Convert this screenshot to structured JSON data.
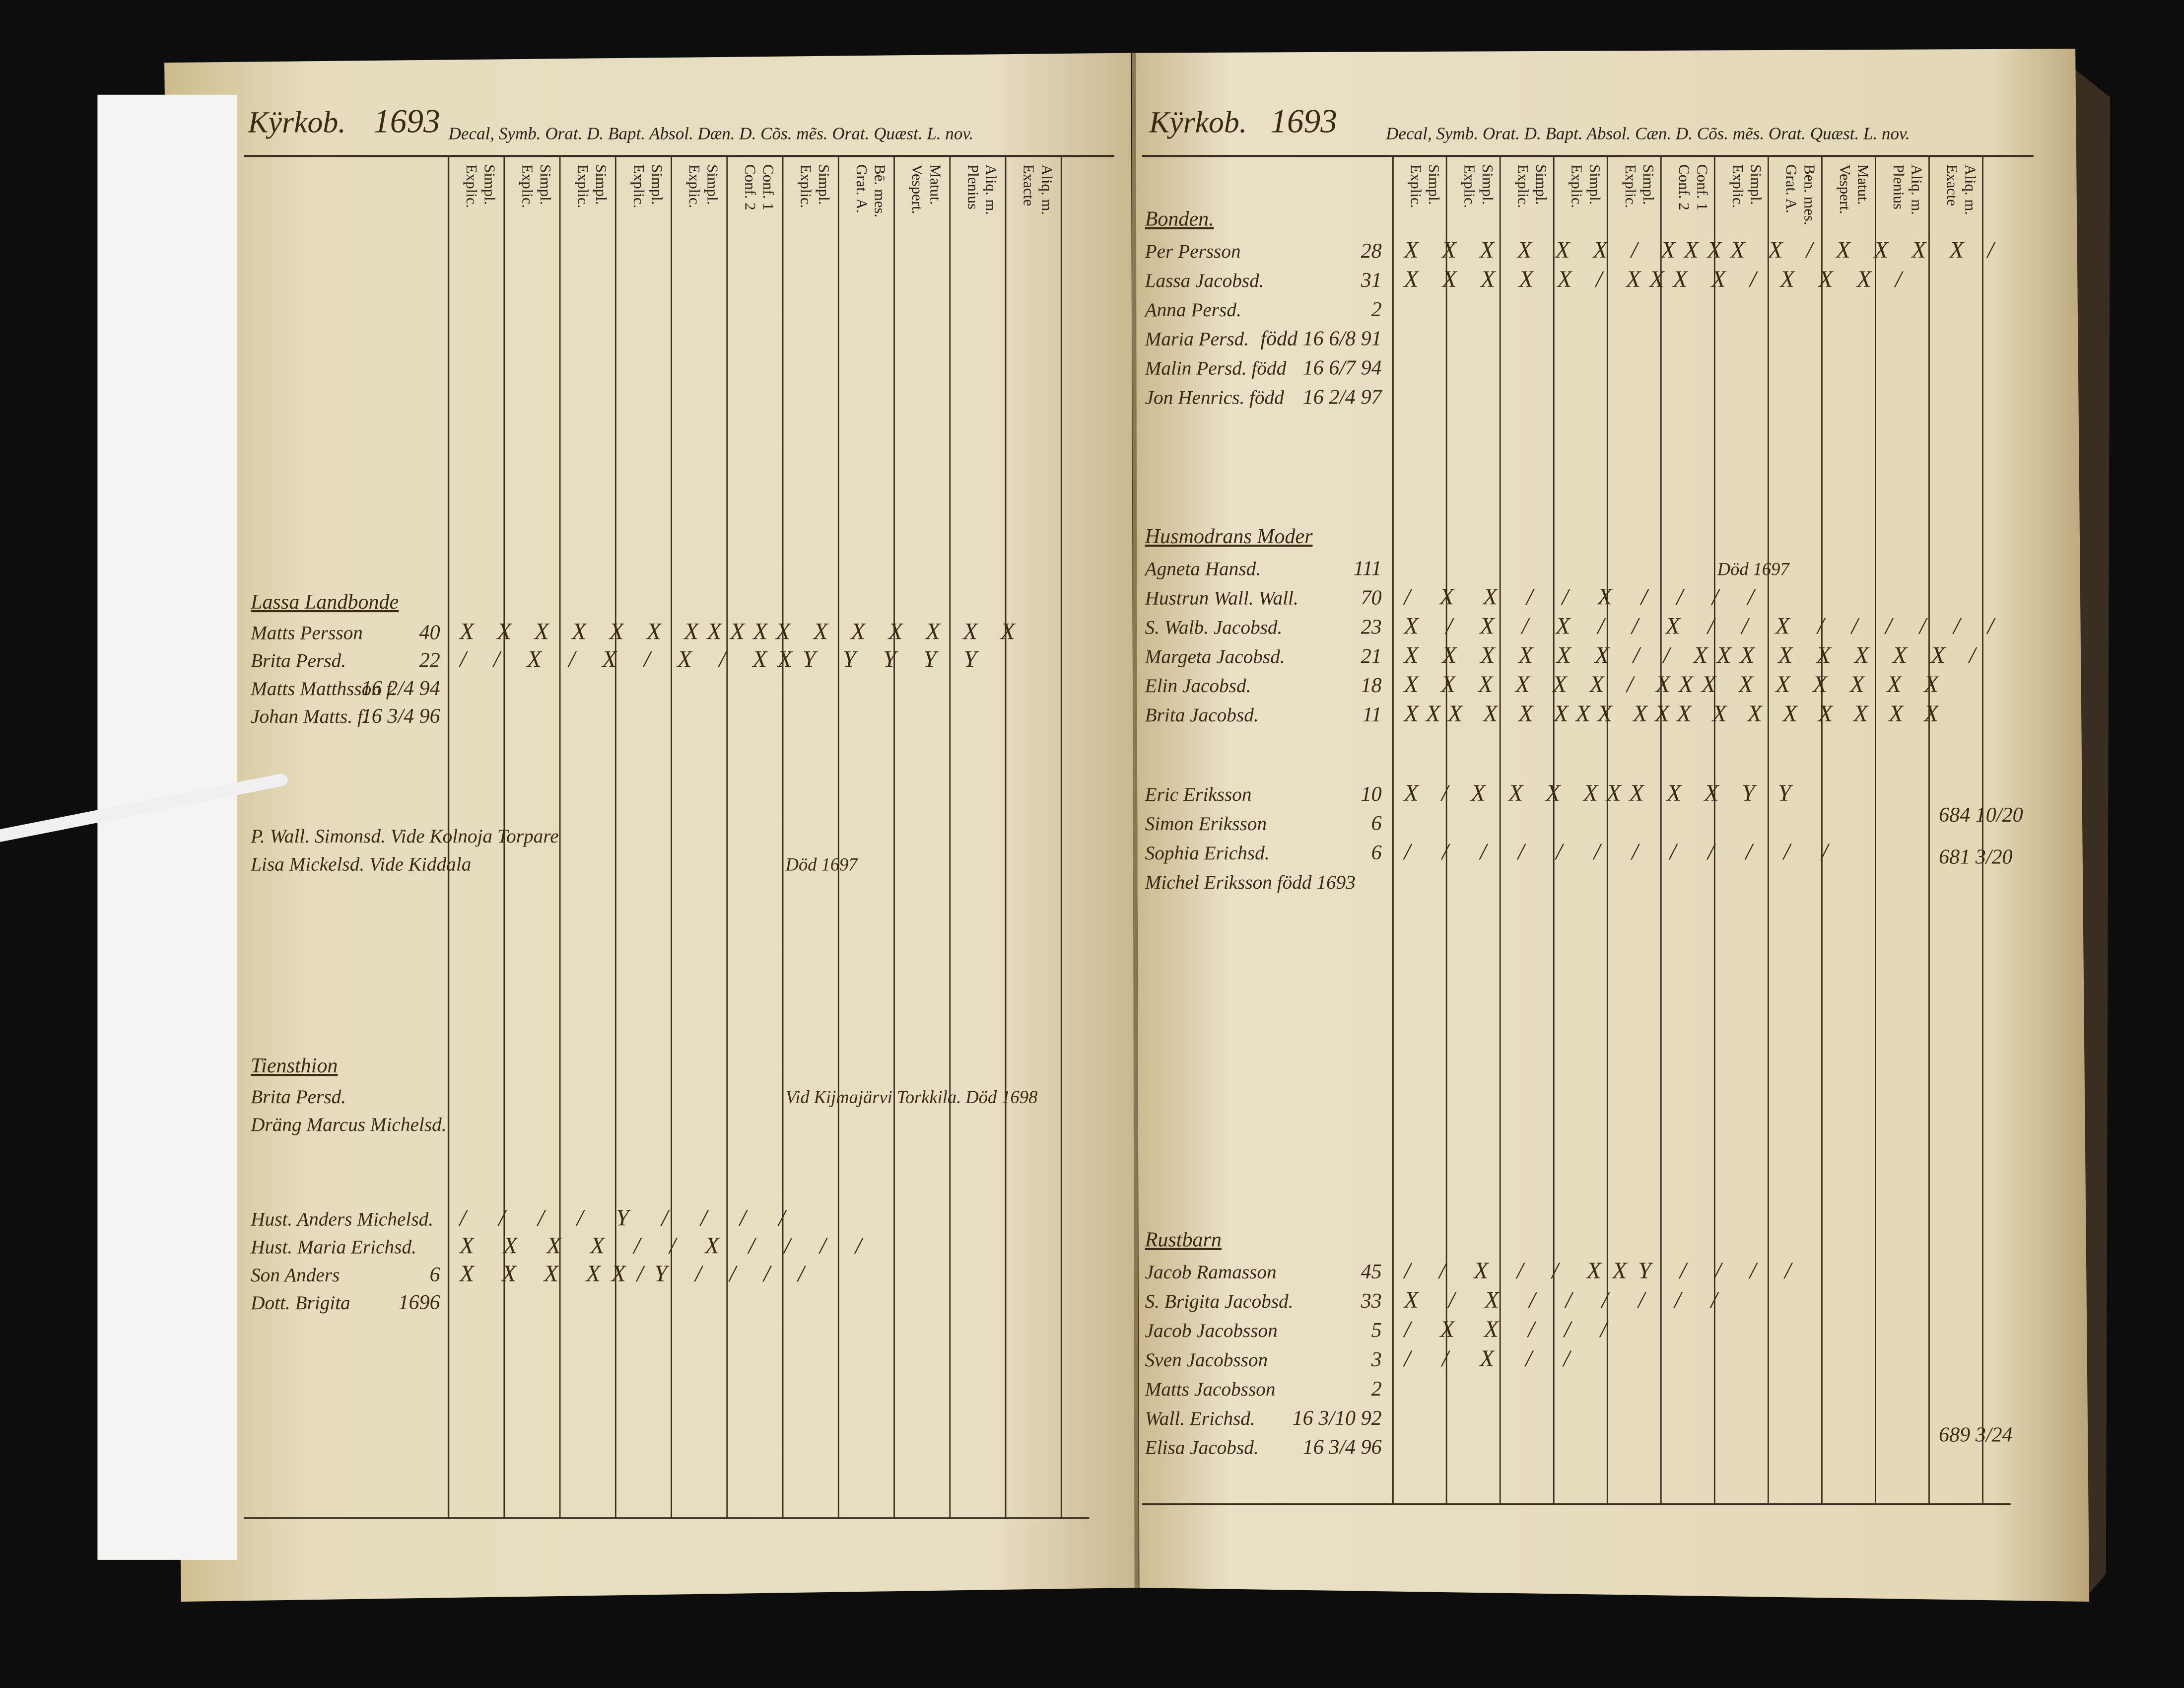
{
  "left_page": {
    "header": {
      "place": "Kÿrkob.",
      "year": "1693",
      "printed": "Decal, Symb. Orat. D. Bapt. Absol. Dæn. D. Cõs. mẽs. Orat. Quæst. L. nov."
    },
    "columns": [
      [
        "Explic.",
        "Simpl."
      ],
      [
        "Explic.",
        "Simpl."
      ],
      [
        "Explic.",
        "Simpl."
      ],
      [
        "Explic.",
        "Simpl."
      ],
      [
        "Explic.",
        "Simpl."
      ],
      [
        "Conf. 2",
        "Conf. 1"
      ],
      [
        "Explic.",
        "Simpl."
      ],
      [
        "Grat. A.",
        "Bē. mes."
      ],
      [
        "Vespert.",
        "Matut."
      ],
      [
        "Plenius",
        "Aliq. m."
      ],
      [
        "Exacte",
        "Aliq. m."
      ]
    ],
    "groups": [
      {
        "heading": "Lassa Landbonde",
        "rows": [
          {
            "name": "Matts Persson",
            "age": "40",
            "marks": "X X X X X X XXXXX X X X X X X"
          },
          {
            "name": "Brita Persd.",
            "age": "22",
            "marks": "/ / X / X / X / XXY Y Y Y Y"
          },
          {
            "name": "Matts Matthsson f.",
            "age": "16 2/4 94"
          },
          {
            "name": "Johan Matts. f.",
            "age": "16 3/4 96"
          }
        ]
      },
      {
        "rows": [
          {
            "name": "P. Wall. Simonsd. Vide Kolnoja Torpare"
          },
          {
            "name": "Lisa Mickelsd. Vide Kiddala",
            "note": "Död 1697"
          }
        ]
      },
      {
        "heading": "Tiensthion",
        "rows": [
          {
            "name": "Brita Persd.",
            "note": "Vid Kijmajärvi Torkkila. Död 1698"
          },
          {
            "name": "Dräng Marcus Michelsd."
          }
        ]
      },
      {
        "rows": [
          {
            "name": "Hust. Anders Michelsd.",
            "marks": "/ / / / Y / / / /"
          },
          {
            "name": "Hust. Maria Erichsd.",
            "marks": "X X X X / / X / / / /"
          },
          {
            "name": "Son Anders",
            "age": "6",
            "marks": "X X X XX/Y / / / /"
          },
          {
            "name": "Dott. Brigita",
            "age": "1696"
          }
        ]
      }
    ]
  },
  "right_page": {
    "header": {
      "place": "Kÿrkob.",
      "year": "1693",
      "printed": "Decal, Symb. Orat. D. Bapt. Absol. Cæn. D. Cõs. mẽs. Orat. Quæst. L. nov."
    },
    "columns": [
      [
        "Explic.",
        "Simpl."
      ],
      [
        "Explic.",
        "Simpl."
      ],
      [
        "Explic.",
        "Simpl."
      ],
      [
        "Explic.",
        "Simpl."
      ],
      [
        "Explic.",
        "Simpl."
      ],
      [
        "Conf. 2",
        "Conf. 1"
      ],
      [
        "Explic.",
        "Simpl."
      ],
      [
        "Grat. A.",
        "Ben. mes."
      ],
      [
        "Vespert.",
        "Matut."
      ],
      [
        "Plenius",
        "Aliq. m."
      ],
      [
        "Exacte",
        "Aliq. m."
      ]
    ],
    "groups": [
      {
        "heading": "Bonden.",
        "rows": [
          {
            "name": "Per Persson",
            "age": "28",
            "marks": "X X X X X X / XXXX X / X X X X /"
          },
          {
            "name": "Lassa Jacobsd.",
            "age": "31",
            "marks": "X X X X X / XXX X / X X X /"
          },
          {
            "name": "Anna Persd.",
            "age": "2"
          },
          {
            "name": "Maria Persd.",
            "age": "född 16 6/8 91"
          },
          {
            "name": "Malin Persd. född",
            "age": "16 6/7 94"
          },
          {
            "name": "Jon Henrics. född",
            "age": "16 2/4 97"
          }
        ]
      },
      {
        "heading": "Husmodrans Moder",
        "rows": [
          {
            "name": "Agneta Hansd.",
            "age": "111",
            "note": "Död 1697"
          },
          {
            "name": "Hustrun Wall. Wall.",
            "age": "70",
            "marks": "/ X X / / X / / / /"
          },
          {
            "name": "S. Walb. Jacobsd.",
            "age": "23",
            "marks": "X / X / X / / X / / X / / / / / /"
          },
          {
            "name": "Margeta Jacobsd.",
            "age": "21",
            "marks": "X X X X X X / / XXX X X X X X /"
          },
          {
            "name": "Elin Jacobsd.",
            "age": "18",
            "marks": "X X X X X X / XXX X X X X X X"
          },
          {
            "name": "Brita Jacobsd.",
            "age": "11",
            "marks": "XXX X X XXX XXX X X X X X X X"
          }
        ]
      },
      {
        "rows": [
          {
            "name": "Eric Eriksson",
            "age": "10",
            "marks": "X / X X X XXX X X Y Y"
          },
          {
            "name": "Simon Eriksson",
            "age": "6"
          },
          {
            "name": "Sophia Erichsd.",
            "age": "6",
            "marks": "/ / / / / / / / / / / /"
          },
          {
            "name": "Michel Eriksson född 1693"
          }
        ]
      },
      {
        "heading": "Rustbarn",
        "rows": [
          {
            "name": "Jacob Ramasson",
            "age": "45",
            "marks": "/ / X / / XXY / / / /"
          },
          {
            "name": "S. Brigita Jacobsd.",
            "age": "33",
            "marks": "X / X / / / / / /"
          },
          {
            "name": "Jacob Jacobsson",
            "age": "5",
            "marks": "/ X X / / /"
          },
          {
            "name": "Sven Jacobsson",
            "age": "3",
            "marks": "/ / X / /"
          },
          {
            "name": "Matts Jacobsson",
            "age": "2"
          },
          {
            "name": "Wall. Erichsd.",
            "age": "16 3/10 92"
          },
          {
            "name": "Elisa Jacobsd.",
            "age": "16 3/4 96"
          }
        ]
      }
    ],
    "margin_notes": [
      "684 10/20",
      "681 3/20",
      "689 3/24"
    ]
  }
}
